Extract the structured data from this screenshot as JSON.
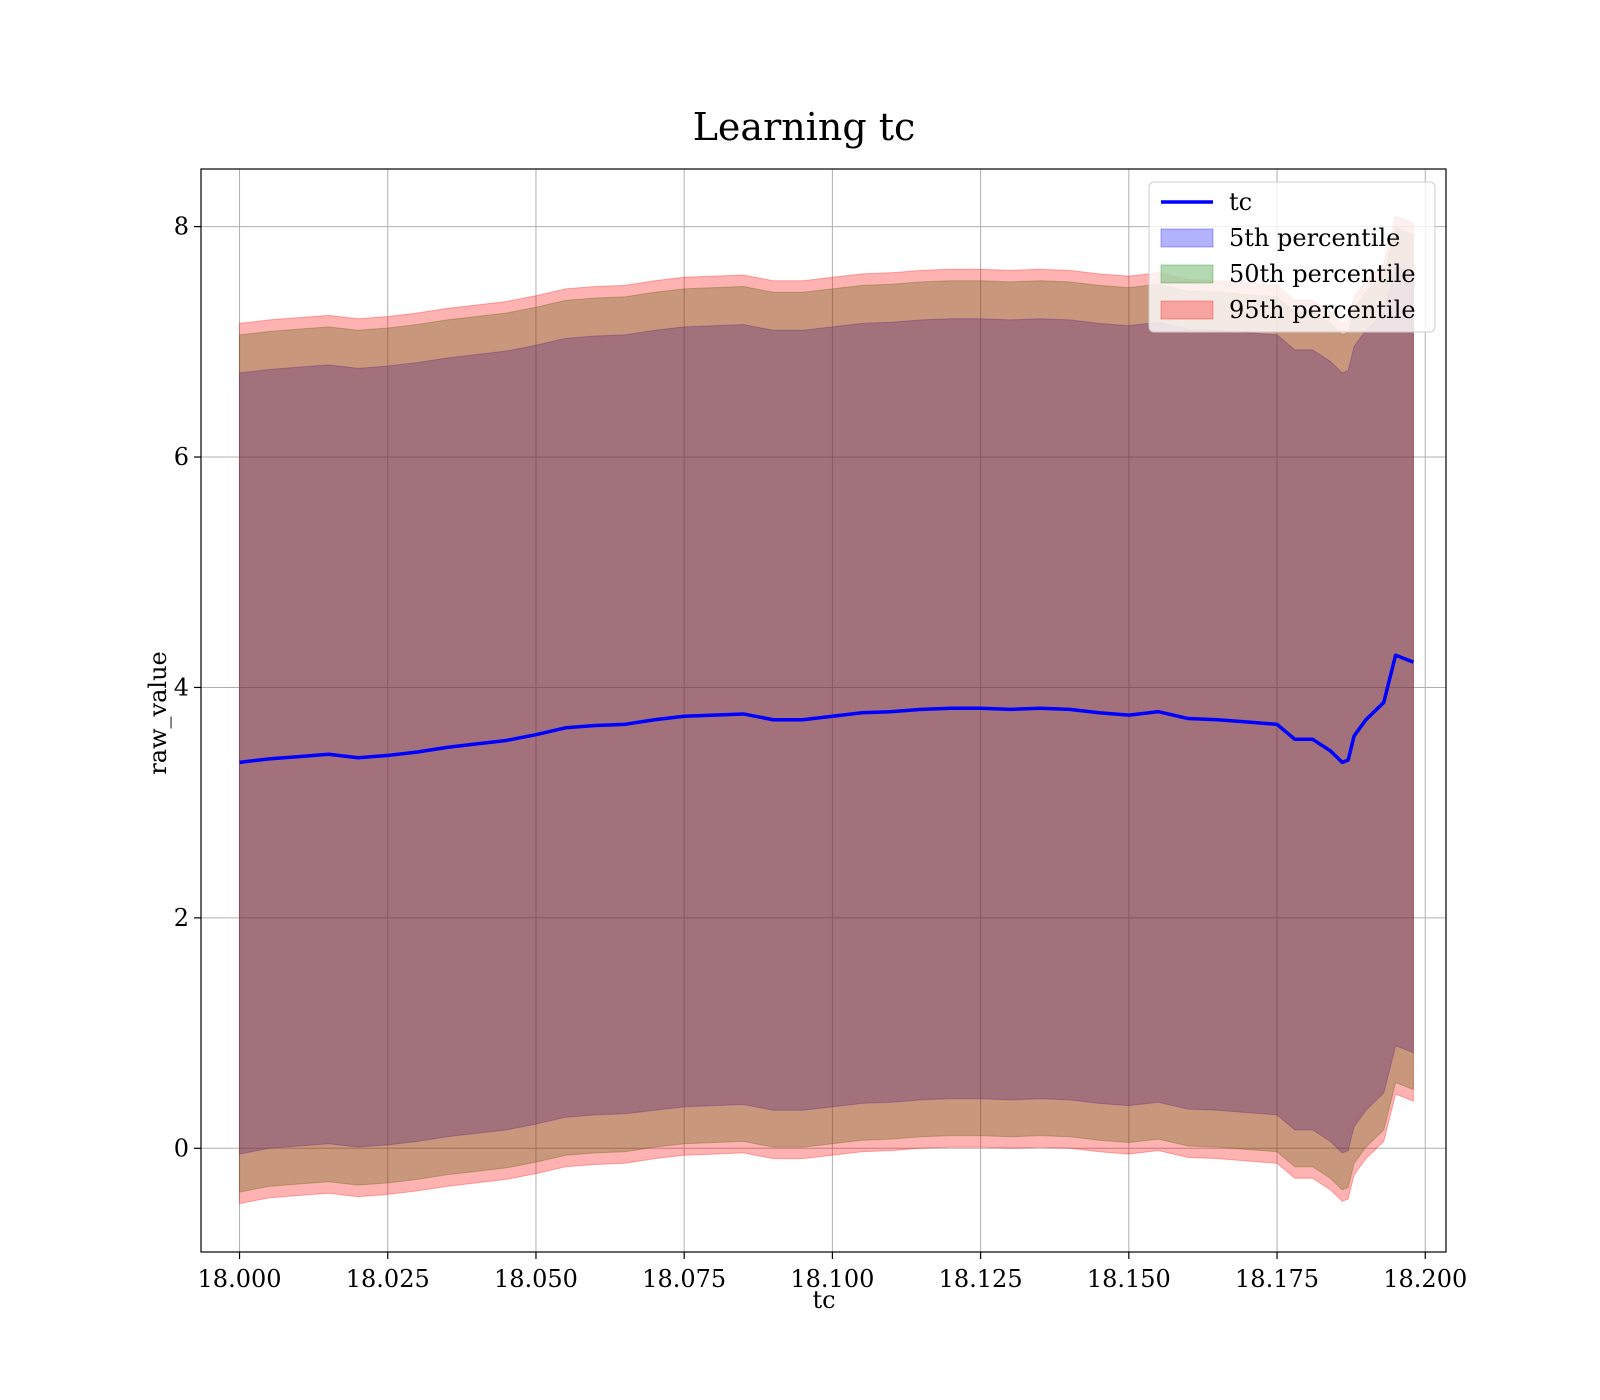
{
  "chart_data": {
    "type": "area",
    "title": "Learning tc",
    "xlabel": "tc",
    "ylabel": "raw_value",
    "xlim": [
      17.9935,
      18.2035
    ],
    "ylim": [
      -0.9,
      8.5
    ],
    "xticks": [
      18.0,
      18.025,
      18.05,
      18.075,
      18.1,
      18.125,
      18.15,
      18.175,
      18.2
    ],
    "xtick_labels": [
      "18.000",
      "18.025",
      "18.050",
      "18.075",
      "18.100",
      "18.125",
      "18.150",
      "18.175",
      "18.200"
    ],
    "yticks": [
      0,
      2,
      4,
      6,
      8
    ],
    "ytick_labels": [
      "0",
      "2",
      "4",
      "6",
      "8"
    ],
    "grid": true,
    "legend_position": "top-right",
    "x": [
      18.0,
      18.005,
      18.01,
      18.015,
      18.02,
      18.025,
      18.03,
      18.035,
      18.04,
      18.045,
      18.05,
      18.055,
      18.06,
      18.065,
      18.07,
      18.075,
      18.08,
      18.085,
      18.09,
      18.095,
      18.1,
      18.105,
      18.11,
      18.115,
      18.12,
      18.125,
      18.13,
      18.135,
      18.14,
      18.145,
      18.15,
      18.155,
      18.16,
      18.165,
      18.17,
      18.175,
      18.178,
      18.181,
      18.184,
      18.186,
      18.187,
      18.188,
      18.19,
      18.193,
      18.195,
      18.196,
      18.198
    ],
    "series": [
      {
        "name": "tc",
        "kind": "line",
        "color": "#0000ff",
        "values": [
          3.35,
          3.38,
          3.4,
          3.42,
          3.39,
          3.41,
          3.44,
          3.48,
          3.51,
          3.54,
          3.59,
          3.65,
          3.67,
          3.68,
          3.72,
          3.75,
          3.76,
          3.77,
          3.72,
          3.72,
          3.75,
          3.78,
          3.79,
          3.81,
          3.82,
          3.82,
          3.81,
          3.82,
          3.81,
          3.78,
          3.76,
          3.79,
          3.73,
          3.72,
          3.7,
          3.68,
          3.55,
          3.55,
          3.45,
          3.35,
          3.37,
          3.58,
          3.72,
          3.87,
          4.28,
          4.26,
          4.22
        ]
      },
      {
        "name": "5th percentile",
        "kind": "band",
        "color": "#0000ff",
        "lower": [
          -0.05,
          0.0,
          0.02,
          0.04,
          0.01,
          0.03,
          0.06,
          0.1,
          0.13,
          0.16,
          0.21,
          0.27,
          0.29,
          0.3,
          0.33,
          0.36,
          0.37,
          0.38,
          0.33,
          0.33,
          0.36,
          0.39,
          0.4,
          0.42,
          0.43,
          0.43,
          0.42,
          0.43,
          0.42,
          0.39,
          0.37,
          0.4,
          0.34,
          0.33,
          0.31,
          0.29,
          0.16,
          0.16,
          0.06,
          -0.04,
          -0.02,
          0.19,
          0.33,
          0.48,
          0.89,
          0.87,
          0.83
        ],
        "upper": [
          6.73,
          6.76,
          6.78,
          6.8,
          6.77,
          6.79,
          6.82,
          6.86,
          6.89,
          6.92,
          6.97,
          7.03,
          7.05,
          7.06,
          7.1,
          7.13,
          7.14,
          7.15,
          7.1,
          7.1,
          7.13,
          7.16,
          7.17,
          7.19,
          7.2,
          7.2,
          7.19,
          7.2,
          7.19,
          7.16,
          7.14,
          7.17,
          7.11,
          7.1,
          7.08,
          7.06,
          6.93,
          6.93,
          6.83,
          6.73,
          6.75,
          6.96,
          7.1,
          7.25,
          7.66,
          7.64,
          7.6
        ]
      },
      {
        "name": "50th percentile",
        "kind": "band",
        "color": "#008000",
        "lower": [
          -0.38,
          -0.33,
          -0.31,
          -0.29,
          -0.32,
          -0.3,
          -0.27,
          -0.23,
          -0.2,
          -0.17,
          -0.12,
          -0.06,
          -0.04,
          -0.03,
          0.01,
          0.04,
          0.05,
          0.06,
          0.01,
          0.01,
          0.04,
          0.07,
          0.08,
          0.1,
          0.11,
          0.11,
          0.1,
          0.11,
          0.1,
          0.07,
          0.05,
          0.08,
          0.02,
          0.01,
          -0.01,
          -0.03,
          -0.16,
          -0.16,
          -0.26,
          -0.36,
          -0.34,
          -0.13,
          0.01,
          0.16,
          0.57,
          0.55,
          0.51
        ],
        "upper": [
          7.06,
          7.09,
          7.11,
          7.13,
          7.1,
          7.12,
          7.15,
          7.19,
          7.22,
          7.25,
          7.3,
          7.36,
          7.38,
          7.39,
          7.43,
          7.46,
          7.47,
          7.48,
          7.43,
          7.43,
          7.46,
          7.49,
          7.5,
          7.52,
          7.53,
          7.53,
          7.52,
          7.53,
          7.52,
          7.49,
          7.47,
          7.5,
          7.44,
          7.43,
          7.41,
          7.39,
          7.26,
          7.26,
          7.16,
          7.06,
          7.08,
          7.29,
          7.43,
          7.58,
          7.99,
          7.97,
          7.93
        ]
      },
      {
        "name": "95th percentile",
        "kind": "band",
        "color": "#ff0000",
        "lower": [
          -0.48,
          -0.43,
          -0.41,
          -0.39,
          -0.42,
          -0.4,
          -0.37,
          -0.33,
          -0.3,
          -0.27,
          -0.22,
          -0.16,
          -0.14,
          -0.13,
          -0.09,
          -0.06,
          -0.05,
          -0.04,
          -0.09,
          -0.09,
          -0.06,
          -0.03,
          -0.02,
          0.0,
          0.01,
          0.01,
          0.0,
          0.01,
          0.0,
          -0.03,
          -0.05,
          -0.02,
          -0.08,
          -0.09,
          -0.11,
          -0.13,
          -0.26,
          -0.26,
          -0.36,
          -0.46,
          -0.44,
          -0.23,
          -0.09,
          0.06,
          0.47,
          0.45,
          0.41
        ],
        "upper": [
          7.16,
          7.19,
          7.21,
          7.23,
          7.2,
          7.22,
          7.25,
          7.29,
          7.32,
          7.35,
          7.4,
          7.46,
          7.48,
          7.49,
          7.53,
          7.56,
          7.57,
          7.58,
          7.53,
          7.53,
          7.56,
          7.59,
          7.6,
          7.62,
          7.63,
          7.63,
          7.62,
          7.63,
          7.62,
          7.59,
          7.57,
          7.6,
          7.54,
          7.53,
          7.51,
          7.49,
          7.36,
          7.36,
          7.26,
          7.16,
          7.18,
          7.39,
          7.53,
          7.68,
          8.09,
          8.07,
          8.03
        ]
      }
    ]
  }
}
